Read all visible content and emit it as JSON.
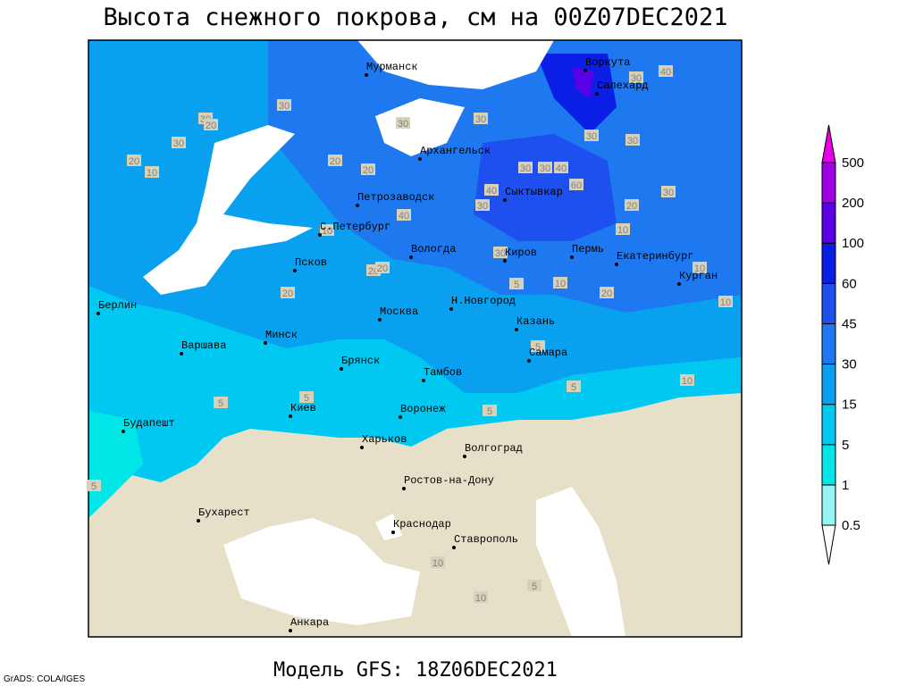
{
  "title": "Высота снежного покрова, см на 00Z07DEC2021",
  "footer": {
    "model": "Модель GFS: 18Z06DEC2021",
    "credit": "GrADS: COLA/IGES"
  },
  "legend": {
    "levels": [
      0.5,
      1,
      5,
      15,
      30,
      45,
      60,
      100,
      200,
      500
    ],
    "colors": [
      "#ffffff",
      "#96f5f5",
      "#00e6e6",
      "#00c8f0",
      "#0aa0f0",
      "#1e78f0",
      "#1e50f0",
      "#0a1ee6",
      "#5a00e6",
      "#a000e6",
      "#e600e6"
    ]
  },
  "cities": [
    "Мурманск",
    "Воркута",
    "Салехард",
    "Архангельск",
    "Сыктывкар",
    "Петрозаводск",
    "С.Петербург",
    "Вологда",
    "Киров",
    "Пермь",
    "Екатеринбург",
    "Курган",
    "Псков",
    "Берлин",
    "Н.Новгород",
    "Москва",
    "Казань",
    "Минск",
    "Варшава",
    "Самара",
    "Брянск",
    "Тамбов",
    "Киев",
    "Воронеж",
    "Будапешт",
    "Харьков",
    "Волгоград",
    "Ростов-на-Дону",
    "Бухарест",
    "Краснодар",
    "Ставрополь",
    "Анкара"
  ],
  "contour_labels": [
    30,
    30,
    20,
    30,
    20,
    10,
    20,
    20,
    30,
    30,
    40,
    30,
    30,
    30,
    30,
    30,
    40,
    40,
    60,
    30,
    20,
    40,
    30,
    10,
    30,
    20,
    20,
    20,
    5,
    10,
    20,
    10,
    10,
    10,
    5,
    5,
    5,
    5,
    5,
    5,
    10,
    10,
    5,
    10
  ]
}
